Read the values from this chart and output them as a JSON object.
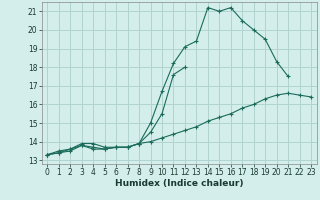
{
  "xlabel": "Humidex (Indice chaleur)",
  "bg_color": "#d4eeeb",
  "grid_color": "#b0d4d0",
  "line_color": "#1a6b5a",
  "xlim": [
    -0.5,
    23.5
  ],
  "ylim": [
    12.8,
    21.5
  ],
  "xticks": [
    0,
    1,
    2,
    3,
    4,
    5,
    6,
    7,
    8,
    9,
    10,
    11,
    12,
    13,
    14,
    15,
    16,
    17,
    18,
    19,
    20,
    21,
    22,
    23
  ],
  "yticks": [
    13,
    14,
    15,
    16,
    17,
    18,
    19,
    20,
    21
  ],
  "line1_x": [
    0,
    1,
    2,
    3,
    4,
    5,
    6,
    7,
    8,
    9,
    10,
    11,
    12,
    13,
    14,
    15,
    16,
    17,
    18,
    19,
    20,
    21,
    22,
    23
  ],
  "line1_y": [
    13.3,
    13.4,
    13.5,
    13.8,
    13.6,
    13.6,
    13.7,
    13.7,
    13.9,
    14.0,
    14.2,
    14.4,
    14.6,
    14.8,
    15.1,
    15.3,
    15.5,
    15.8,
    16.0,
    16.3,
    16.5,
    16.6,
    16.5,
    16.4
  ],
  "line2_x": [
    0,
    1,
    2,
    3,
    4,
    5,
    6,
    7,
    8,
    9,
    10,
    11,
    12,
    13,
    14,
    15,
    16,
    17,
    18,
    19,
    20,
    21,
    22,
    23
  ],
  "line2_y": [
    13.3,
    13.5,
    13.6,
    13.9,
    13.9,
    13.7,
    13.7,
    13.7,
    13.9,
    15.0,
    16.7,
    18.2,
    19.1,
    19.4,
    21.2,
    21.0,
    21.2,
    20.5,
    20.0,
    19.5,
    18.3,
    17.5,
    null,
    null
  ],
  "line3_x": [
    0,
    1,
    2,
    3,
    4,
    5,
    6,
    7,
    8,
    9,
    10,
    11,
    12,
    13,
    14,
    15,
    16,
    17,
    18,
    19,
    20,
    21,
    22,
    23
  ],
  "line3_y": [
    13.3,
    13.4,
    13.6,
    13.8,
    13.7,
    13.6,
    13.7,
    13.7,
    13.9,
    14.5,
    15.5,
    17.6,
    18.0,
    null,
    null,
    null,
    null,
    null,
    null,
    null,
    null,
    null,
    null,
    null
  ]
}
